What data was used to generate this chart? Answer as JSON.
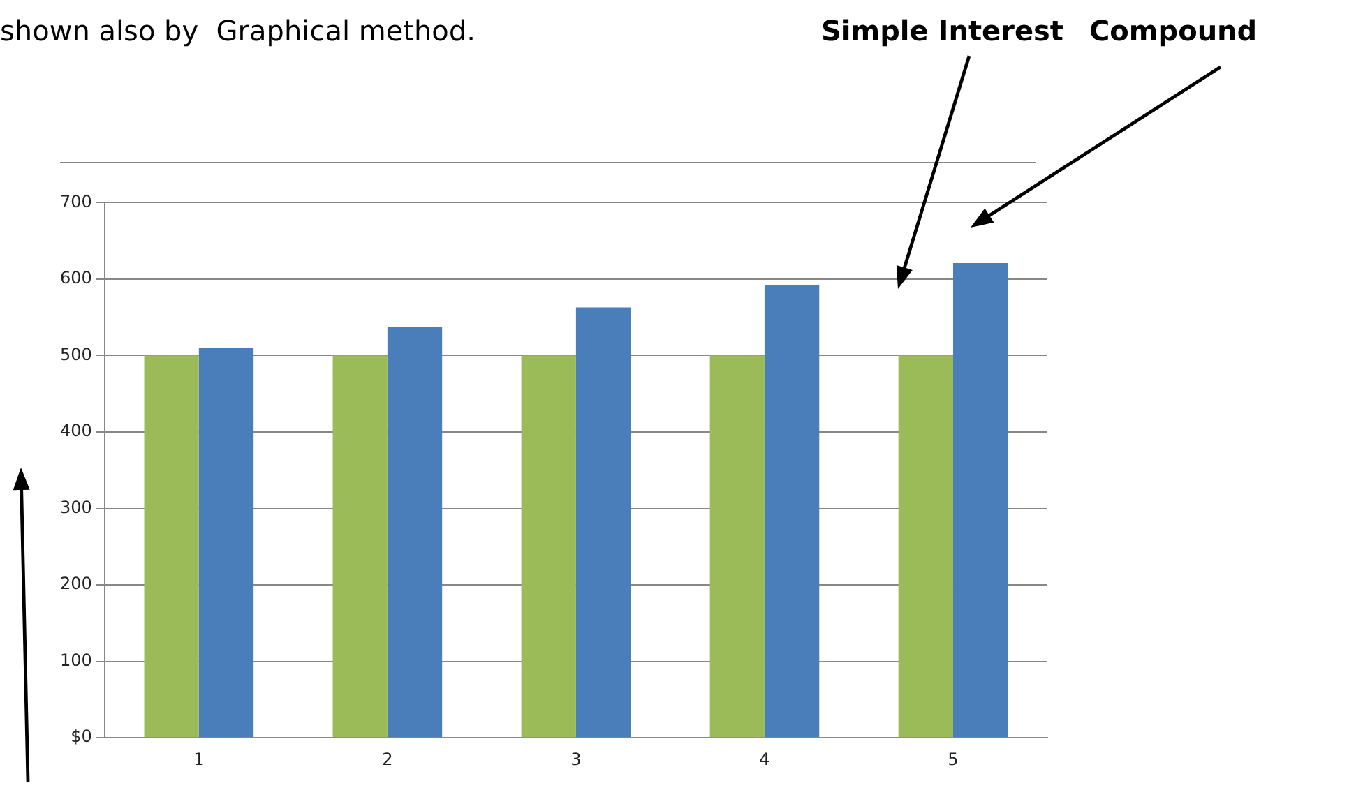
{
  "chart_data": {
    "type": "bar",
    "title": "shown also by  Graphical method.",
    "categories": [
      "1",
      "2",
      "3",
      "4",
      "5"
    ],
    "series": [
      {
        "color": "#9bbb59",
        "values": [
          500,
          500,
          500,
          500,
          500
        ]
      },
      {
        "color": "#4a7ebb",
        "values": [
          510,
          537,
          563,
          592,
          621
        ]
      }
    ],
    "ylim": [
      0,
      700
    ],
    "yticks": [
      {
        "value": 0,
        "label": "$0"
      },
      100,
      200,
      300,
      400,
      500,
      600,
      700
    ],
    "grid": "y",
    "legend": false,
    "annotations": [
      "Simple Interest",
      "Compound"
    ]
  }
}
